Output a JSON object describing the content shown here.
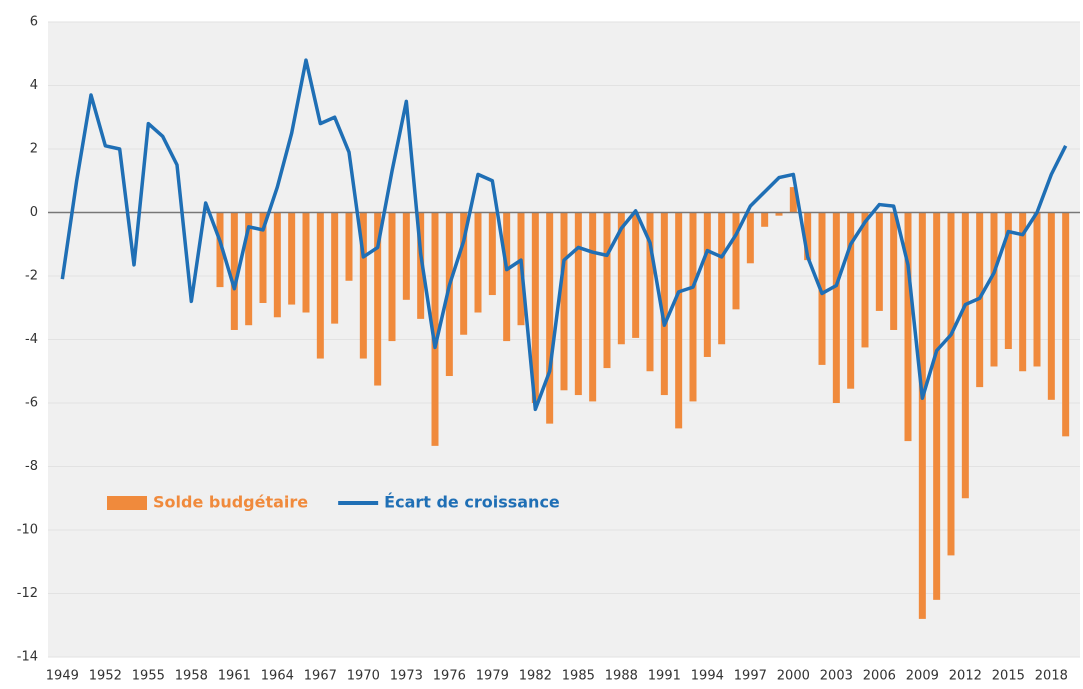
{
  "chart_data": {
    "type": "combo",
    "x": [
      1949,
      1950,
      1951,
      1952,
      1953,
      1954,
      1955,
      1956,
      1957,
      1958,
      1959,
      1960,
      1961,
      1962,
      1963,
      1964,
      1965,
      1966,
      1967,
      1968,
      1969,
      1970,
      1971,
      1972,
      1973,
      1974,
      1975,
      1976,
      1977,
      1978,
      1979,
      1980,
      1981,
      1982,
      1983,
      1984,
      1985,
      1986,
      1987,
      1988,
      1989,
      1990,
      1991,
      1992,
      1993,
      1994,
      1995,
      1996,
      1997,
      1998,
      1999,
      2000,
      2001,
      2002,
      2003,
      2004,
      2005,
      2006,
      2007,
      2008,
      2009,
      2010,
      2011,
      2012,
      2013,
      2014,
      2015,
      2016,
      2017,
      2018,
      2019
    ],
    "series": [
      {
        "name": "Solde budgétaire",
        "type": "bar",
        "color": "#f08a3c",
        "values": [
          null,
          null,
          null,
          null,
          null,
          null,
          null,
          null,
          null,
          null,
          null,
          -2.35,
          -3.7,
          -3.55,
          -2.85,
          -3.3,
          -2.9,
          -3.15,
          -4.6,
          -3.5,
          -2.15,
          -4.6,
          -5.45,
          -4.05,
          -2.75,
          -3.35,
          -7.35,
          -5.15,
          -3.85,
          -3.15,
          -2.6,
          -4.05,
          -3.55,
          -6.0,
          -6.65,
          -5.6,
          -5.75,
          -5.95,
          -4.9,
          -4.15,
          -3.95,
          -5.0,
          -5.75,
          -6.8,
          -5.95,
          -4.55,
          -4.15,
          -3.05,
          -1.6,
          -0.45,
          -0.1,
          0.8,
          -1.5,
          -4.8,
          -6.0,
          -5.55,
          -4.25,
          -3.1,
          -3.7,
          -7.2,
          -12.8,
          -12.2,
          -10.8,
          -9.0,
          -5.5,
          -4.85,
          -4.3,
          -5.0,
          -4.85,
          -5.9,
          -7.05
        ]
      },
      {
        "name": "Écart de croissance",
        "type": "line",
        "color": "#1f6fb5",
        "values": [
          -2.1,
          1.0,
          3.7,
          2.1,
          2.0,
          -1.65,
          2.8,
          2.4,
          1.5,
          -2.8,
          0.3,
          -0.9,
          -2.4,
          -0.45,
          -0.55,
          0.8,
          2.5,
          4.8,
          2.8,
          3.0,
          1.9,
          -1.4,
          -1.1,
          1.3,
          3.5,
          -1.3,
          -4.25,
          -2.3,
          -0.9,
          1.2,
          1.0,
          -1.8,
          -1.5,
          -6.2,
          -5.0,
          -1.5,
          -1.1,
          -1.25,
          -1.35,
          -0.5,
          0.05,
          -0.95,
          -3.55,
          -2.5,
          -2.35,
          -1.2,
          -1.4,
          -0.7,
          0.2,
          0.65,
          1.1,
          1.2,
          -1.4,
          -2.55,
          -2.3,
          -1.0,
          -0.3,
          0.25,
          0.2,
          -1.65,
          -5.85,
          -4.35,
          -3.85,
          -2.9,
          -2.7,
          -1.9,
          -0.6,
          -0.7,
          0.0,
          1.2,
          2.1
        ]
      }
    ],
    "xlim": [
      1948,
      2020
    ],
    "xticks": [
      1949,
      1952,
      1955,
      1958,
      1961,
      1964,
      1967,
      1970,
      1973,
      1976,
      1979,
      1982,
      1985,
      1988,
      1991,
      1994,
      1997,
      2000,
      2003,
      2006,
      2009,
      2012,
      2015,
      2018
    ],
    "ylim": [
      -14,
      6
    ],
    "yticks": [
      -14,
      -12,
      -10,
      -8,
      -6,
      -4,
      -2,
      0,
      2,
      4,
      6
    ],
    "grid": true,
    "legend": "left"
  }
}
